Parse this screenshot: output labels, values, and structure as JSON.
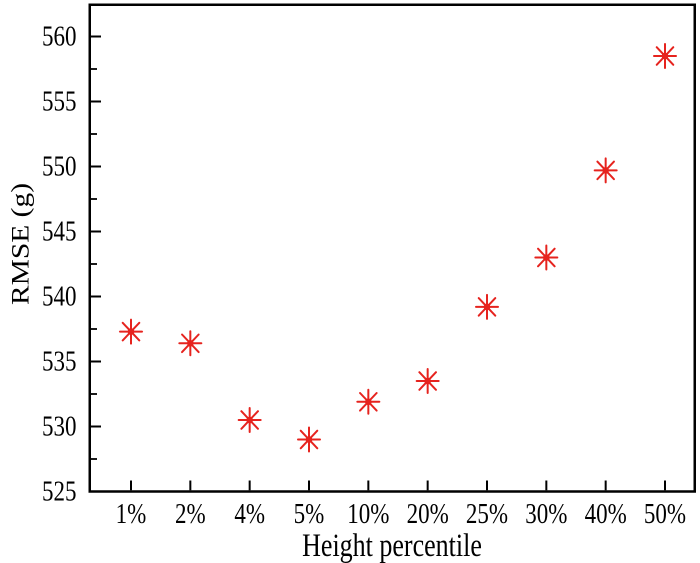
{
  "figure": {
    "background": "#ffffff"
  },
  "chart_data": {
    "type": "scatter",
    "title": "",
    "xlabel": "Height percentile",
    "ylabel": "RMSE (g)",
    "categories": [
      "1%",
      "2%",
      "4%",
      "5%",
      "10%",
      "20%",
      "25%",
      "30%",
      "40%",
      "50%"
    ],
    "values": [
      537.3,
      536.4,
      530.5,
      529.0,
      531.9,
      533.5,
      539.2,
      543.0,
      549.7,
      558.5
    ],
    "series": [
      {
        "name": "RMSE",
        "values": [
          537.3,
          536.4,
          530.5,
          529.0,
          531.9,
          533.5,
          539.2,
          543.0,
          549.7,
          558.5
        ]
      }
    ],
    "ylim": [
      525,
      562.5
    ],
    "yticks": [
      525,
      530,
      535,
      540,
      545,
      550,
      555,
      560
    ],
    "y_minor_step": 2.5,
    "grid": false,
    "legend": "none",
    "marker": {
      "shape": "asterisk-8-with-center-dot",
      "color": "#e6231e",
      "size": 24
    },
    "axis_color": "#000000",
    "text_color": "#000000",
    "tick_direction": "in"
  }
}
